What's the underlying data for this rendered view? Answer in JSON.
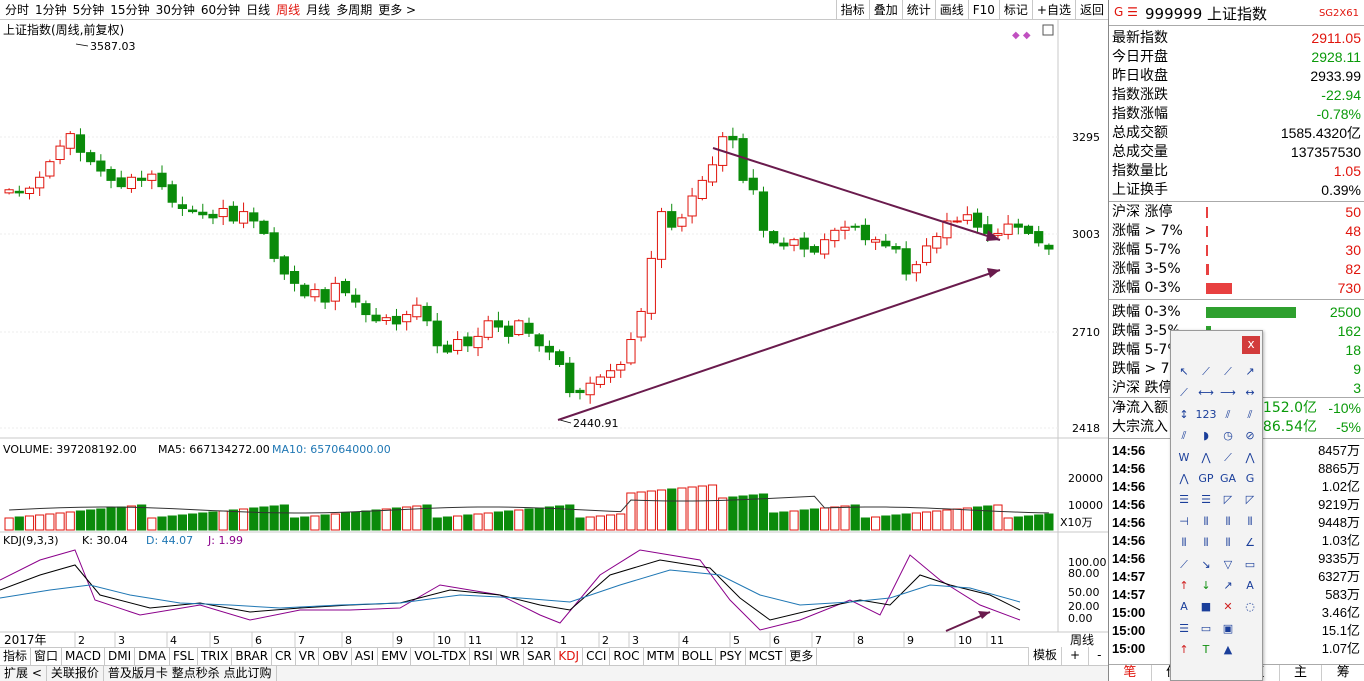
{
  "periods": [
    "分时",
    "1分钟",
    "5分钟",
    "15分钟",
    "30分钟",
    "60分钟",
    "日线",
    "周线",
    "月线",
    "多周期",
    "更多 >"
  ],
  "active_period": "周线",
  "tools": [
    "指标",
    "叠加",
    "统计",
    "画线",
    "F10",
    "标记",
    "+自选",
    "返回"
  ],
  "main": {
    "title": "上证指数(周线,前复权)",
    "high_label": "3587.03",
    "low_label": "2440.91",
    "axis": [
      "3295",
      "3003",
      "2710",
      "2418"
    ]
  },
  "volume": {
    "label": "VOLUME: 397208192.00",
    "ma5": "MA5: 667134272.00",
    "ma10": "MA10: 657064000.00",
    "axis": [
      "20000",
      "10000"
    ],
    "unit": "X10万"
  },
  "kdj": {
    "label": "KDJ(9,3,3)",
    "k": "K: 30.04",
    "d": "D: 44.07",
    "j": "J: 1.99",
    "axis": [
      "100.00",
      "80.00",
      "50.00",
      "20.00",
      "0.00"
    ]
  },
  "xaxis": {
    "year": "2017年",
    "months": [
      "2",
      "3",
      "4",
      "5",
      "6",
      "7",
      "8",
      "9",
      "10",
      "11",
      "12",
      "1",
      "2",
      "3",
      "4",
      "5",
      "6",
      "7",
      "8",
      "9",
      "10",
      "11"
    ],
    "period": "周线"
  },
  "bottom_tabs": [
    "指标",
    "窗口",
    "MACD",
    "DMI",
    "DMA",
    "FSL",
    "TRIX",
    "BRAR",
    "CR",
    "VR",
    "OBV",
    "ASI",
    "EMV",
    "VOL-TDX",
    "RSI",
    "WR",
    "SAR",
    "KDJ",
    "CCI",
    "ROC",
    "MTM",
    "BOLL",
    "PSY",
    "MCST",
    "更多"
  ],
  "active_tab": "KDJ",
  "bottom_right": [
    "模板",
    "+",
    "-"
  ],
  "status": [
    "扩展 <",
    "关联报价",
    "普及版月卡 整点秒杀 点此订购"
  ],
  "quote": {
    "header": "999999 上证指数",
    "badge": "SG2X61",
    "rows": [
      {
        "label": "最新指数",
        "value": "2911.05",
        "color": "red"
      },
      {
        "label": "今日开盘",
        "value": "2928.11",
        "color": "green"
      },
      {
        "label": "昨日收盘",
        "value": "2933.99",
        "color": "black"
      },
      {
        "label": "指数涨跌",
        "value": "-22.94",
        "color": "green"
      },
      {
        "label": "指数涨幅",
        "value": "-0.78%",
        "color": "green"
      },
      {
        "label": "总成交额",
        "value": "1585.4320亿",
        "color": "black"
      },
      {
        "label": "总成交量",
        "value": "137357530",
        "color": "black"
      },
      {
        "label": "指数量比",
        "value": "1.05",
        "color": "red"
      },
      {
        "label": "上证换手",
        "value": "0.39%",
        "color": "black"
      }
    ],
    "breadth": [
      {
        "label": "沪深 涨停",
        "value": "50",
        "color": "red",
        "bar": 0.01
      },
      {
        "label": "涨幅 > 7%",
        "value": "48",
        "color": "red",
        "bar": 0.01
      },
      {
        "label": "涨幅 5-7%",
        "value": "30",
        "color": "red",
        "bar": 0.01
      },
      {
        "label": "涨幅 3-5%",
        "value": "82",
        "color": "red",
        "bar": 0.03
      },
      {
        "label": "涨幅 0-3%",
        "value": "730",
        "color": "red",
        "bar": 0.27
      },
      {
        "label": "跌幅 0-3%",
        "value": "2500",
        "color": "green",
        "bar": 0.95
      },
      {
        "label": "跌幅 3-5%",
        "value": "162",
        "color": "green",
        "bar": 0.05
      },
      {
        "label": "跌幅 5-7%",
        "value": "18",
        "color": "green",
        "bar": 0.01
      },
      {
        "label": "跌幅 > 7%",
        "value": "9",
        "color": "green",
        "bar": 0.01
      },
      {
        "label": "沪深 跌停",
        "value": "3",
        "color": "green",
        "bar": 0.01
      }
    ],
    "flows": [
      {
        "label": "净流入额",
        "value": "-152.0亿",
        "pct": "-10%"
      },
      {
        "label": "大宗流入",
        "value": "-86.54亿",
        "pct": "-5%"
      }
    ],
    "ticks": [
      {
        "t": "14:56",
        "v": "8457万",
        "c": "green"
      },
      {
        "t": "14:56",
        "v": "8865万",
        "c": "green"
      },
      {
        "t": "14:56",
        "v": "1.02亿",
        "c": "green"
      },
      {
        "t": "14:56",
        "v": "9219万",
        "c": "green"
      },
      {
        "t": "14:56",
        "v": "9448万",
        "c": "green"
      },
      {
        "t": "14:56",
        "v": "1.03亿",
        "c": "green"
      },
      {
        "t": "14:56",
        "v": "9335万",
        "c": "green"
      },
      {
        "t": "14:57",
        "v": "6327万",
        "c": "green"
      },
      {
        "t": "14:57",
        "v": "583万",
        "c": "green"
      },
      {
        "t": "15:00",
        "v": "3.46亿",
        "c": "green"
      },
      {
        "t": "15:00",
        "v": "15.1亿",
        "c": "green"
      },
      {
        "t": "15:00",
        "v": "1.07亿",
        "c": "green"
      }
    ],
    "bottom_tabs": [
      "笔",
      "价",
      "",
      "值",
      "主",
      "筹"
    ]
  },
  "drawtool": {
    "close": "x",
    "icons": [
      "↖",
      "⟋",
      "⟋",
      "↗",
      "⟋",
      "⟷",
      "⟶",
      "↔",
      "↕",
      "123",
      "⫽",
      "⫽",
      "⫽",
      "◗",
      "◷",
      "⊘",
      "W",
      "⋀",
      "⟋",
      "⋀",
      "⋀",
      "GP",
      "GA",
      "G",
      "☰",
      "☰",
      "◸",
      "◸",
      "⊣",
      "⦀",
      "⦀",
      "⦀",
      "⦀",
      "⦀",
      "⦀",
      "∠",
      "⟋",
      "↘",
      "▽",
      "▭",
      "↑",
      "↓",
      "↗",
      "A",
      "A",
      "■",
      "✕",
      "◌",
      "☰",
      "▭",
      "▣",
      "",
      "↑",
      "T",
      "▲",
      ""
    ]
  },
  "chart_data": {
    "type": "candlestick",
    "title": "上证指数(周线,前复权)",
    "ylim": [
      2350,
      3600
    ],
    "high": 3587.03,
    "low": 2440.91,
    "last_close": 2911.05,
    "volume_latest": 397208192.0,
    "volume_ma5": 667134272.0,
    "volume_ma10": 657064000.0,
    "kdj": {
      "K": 30.04,
      "D": 44.07,
      "J": 1.99
    }
  }
}
